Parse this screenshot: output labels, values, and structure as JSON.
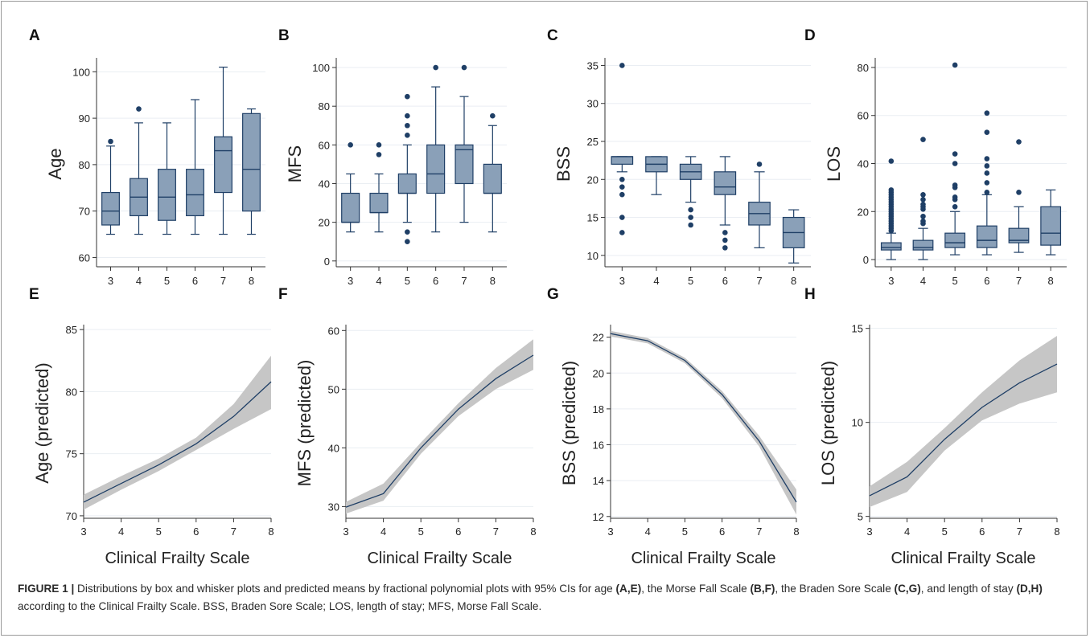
{
  "figure": {
    "caption": {
      "label": "FIGURE 1 |",
      "parts": [
        {
          "t": " Distributions by box and whisker plots and predicted means by fractional polynomial plots with 95% CIs for age ",
          "b": false
        },
        {
          "t": "(A,E)",
          "b": true
        },
        {
          "t": ", the Morse Fall Scale ",
          "b": false
        },
        {
          "t": "(B,F)",
          "b": true
        },
        {
          "t": ", the Braden Sore Scale ",
          "b": false
        },
        {
          "t": "(C,G)",
          "b": true
        },
        {
          "t": ", and length of stay ",
          "b": false
        },
        {
          "t": "(D,H)",
          "b": true
        },
        {
          "t": " according to the Clinical Frailty Scale. BSS, Braden Sore Scale; LOS, length of stay; MFS, Morse Fall Scale.",
          "b": false
        }
      ]
    }
  },
  "colors": {
    "box_fill": "#8aa0b8",
    "box_stroke": "#1f3f66",
    "outlier": "#1f3f66",
    "line": "#1f3f66",
    "ci_band": "#c6c6c6",
    "grid": "#eaeef3",
    "axis": "#333333"
  },
  "chart_data": [
    {
      "panel": "A",
      "type": "box",
      "categories": [
        "3",
        "4",
        "5",
        "6",
        "7",
        "8"
      ],
      "ylabel": "Age",
      "xlabel": "",
      "ylim": [
        58,
        103
      ],
      "yticks": [
        60,
        70,
        80,
        90,
        100
      ],
      "boxes": [
        {
          "x": "3",
          "min": 65,
          "q1": 67,
          "median": 70,
          "q3": 74,
          "max": 84,
          "outliers": [
            85
          ]
        },
        {
          "x": "4",
          "min": 65,
          "q1": 69,
          "median": 73,
          "q3": 77,
          "max": 89,
          "outliers": [
            92
          ]
        },
        {
          "x": "5",
          "min": 65,
          "q1": 68,
          "median": 73,
          "q3": 79,
          "max": 89,
          "outliers": []
        },
        {
          "x": "6",
          "min": 65,
          "q1": 69,
          "median": 73.5,
          "q3": 79,
          "max": 94,
          "outliers": []
        },
        {
          "x": "7",
          "min": 65,
          "q1": 74,
          "median": 83,
          "q3": 86,
          "max": 101,
          "outliers": []
        },
        {
          "x": "8",
          "min": 65,
          "q1": 70,
          "median": 79,
          "q3": 91,
          "max": 92,
          "outliers": []
        }
      ]
    },
    {
      "panel": "B",
      "type": "box",
      "categories": [
        "3",
        "4",
        "5",
        "6",
        "7",
        "8"
      ],
      "ylabel": "MFS",
      "xlabel": "",
      "ylim": [
        -3,
        105
      ],
      "yticks": [
        0,
        20,
        40,
        60,
        80,
        100
      ],
      "boxes": [
        {
          "x": "3",
          "min": 15,
          "q1": 20,
          "median": 20,
          "q3": 35,
          "max": 45,
          "outliers": [
            60
          ]
        },
        {
          "x": "4",
          "min": 15,
          "q1": 25,
          "median": 25,
          "q3": 35,
          "max": 45,
          "outliers": [
            55,
            60
          ]
        },
        {
          "x": "5",
          "min": 20,
          "q1": 35,
          "median": 35,
          "q3": 45,
          "max": 60,
          "outliers": [
            10,
            15,
            65,
            70,
            75,
            85
          ]
        },
        {
          "x": "6",
          "min": 15,
          "q1": 35,
          "median": 45,
          "q3": 60,
          "max": 90,
          "outliers": [
            100
          ]
        },
        {
          "x": "7",
          "min": 20,
          "q1": 40,
          "median": 57.5,
          "q3": 60,
          "max": 85,
          "outliers": [
            100
          ]
        },
        {
          "x": "8",
          "min": 15,
          "q1": 35,
          "median": 35,
          "q3": 50,
          "max": 70,
          "outliers": [
            75
          ]
        }
      ]
    },
    {
      "panel": "C",
      "type": "box",
      "categories": [
        "3",
        "4",
        "5",
        "6",
        "7",
        "8"
      ],
      "ylabel": "BSS",
      "xlabel": "",
      "ylim": [
        8.5,
        36
      ],
      "yticks": [
        10,
        15,
        20,
        25,
        30,
        35
      ],
      "boxes": [
        {
          "x": "3",
          "min": 21,
          "q1": 22,
          "median": 23,
          "q3": 23,
          "max": 23,
          "outliers": [
            13,
            15,
            18,
            19,
            20,
            35
          ]
        },
        {
          "x": "4",
          "min": 18,
          "q1": 21,
          "median": 22,
          "q3": 23,
          "max": 23,
          "outliers": []
        },
        {
          "x": "5",
          "min": 17,
          "q1": 20,
          "median": 21,
          "q3": 22,
          "max": 23,
          "outliers": [
            14,
            15,
            16
          ]
        },
        {
          "x": "6",
          "min": 14,
          "q1": 18,
          "median": 19,
          "q3": 21,
          "max": 23,
          "outliers": [
            11,
            12,
            13
          ]
        },
        {
          "x": "7",
          "min": 11,
          "q1": 14,
          "median": 15.5,
          "q3": 17,
          "max": 21,
          "outliers": [
            22
          ]
        },
        {
          "x": "8",
          "min": 9,
          "q1": 11,
          "median": 13,
          "q3": 15,
          "max": 16,
          "outliers": []
        }
      ]
    },
    {
      "panel": "D",
      "type": "box",
      "categories": [
        "3",
        "4",
        "5",
        "6",
        "7",
        "8"
      ],
      "ylabel": "LOS",
      "xlabel": "",
      "ylim": [
        -3,
        84
      ],
      "yticks": [
        0,
        20,
        40,
        60,
        80
      ],
      "boxes": [
        {
          "x": "3",
          "min": 0,
          "q1": 4,
          "median": 5,
          "q3": 7,
          "max": 11,
          "outliers": [
            12,
            13,
            14,
            15,
            16,
            17,
            18,
            19,
            20,
            21,
            22,
            23,
            24,
            25,
            26,
            27,
            28,
            29,
            41
          ]
        },
        {
          "x": "4",
          "min": 0,
          "q1": 4,
          "median": 5,
          "q3": 8,
          "max": 13,
          "outliers": [
            15,
            16,
            18,
            21,
            22,
            23,
            25,
            27,
            50
          ]
        },
        {
          "x": "5",
          "min": 2,
          "q1": 5,
          "median": 7,
          "q3": 11,
          "max": 20,
          "outliers": [
            22,
            25,
            26,
            30,
            31,
            40,
            44,
            81
          ]
        },
        {
          "x": "6",
          "min": 2,
          "q1": 5,
          "median": 8,
          "q3": 14,
          "max": 27,
          "outliers": [
            28,
            32,
            36,
            39,
            42,
            53,
            61
          ]
        },
        {
          "x": "7",
          "min": 3,
          "q1": 7,
          "median": 8,
          "q3": 13,
          "max": 22,
          "outliers": [
            28,
            49
          ]
        },
        {
          "x": "8",
          "min": 2,
          "q1": 6,
          "median": 11,
          "q3": 22,
          "max": 29,
          "outliers": []
        }
      ]
    },
    {
      "panel": "E",
      "type": "line",
      "x": [
        3,
        4,
        5,
        6,
        7,
        8
      ],
      "xlabel": "Clinical Frailty Scale",
      "ylabel": "Age (predicted)",
      "ylim": [
        69.8,
        85.4
      ],
      "xlim": [
        3,
        8
      ],
      "yticks": [
        70,
        75,
        80,
        85
      ],
      "series": [
        {
          "values": [
            71.1,
            72.6,
            74.1,
            75.8,
            78.0,
            80.8
          ],
          "lower": [
            70.5,
            72.1,
            73.6,
            75.3,
            77.0,
            78.6
          ],
          "upper": [
            71.7,
            73.2,
            74.6,
            76.3,
            79.0,
            82.9
          ]
        }
      ]
    },
    {
      "panel": "F",
      "type": "line",
      "x": [
        3,
        4,
        5,
        6,
        7,
        8
      ],
      "xlabel": "Clinical Frailty Scale",
      "ylabel": "MFS (predicted)",
      "ylim": [
        28,
        61
      ],
      "xlim": [
        3,
        8
      ],
      "yticks": [
        30,
        40,
        50,
        60
      ],
      "series": [
        {
          "values": [
            29.9,
            32.2,
            40.0,
            46.6,
            51.8,
            55.8
          ],
          "lower": [
            28.8,
            31.0,
            39.0,
            45.4,
            50.0,
            53.3
          ],
          "upper": [
            30.8,
            33.9,
            40.9,
            47.6,
            53.6,
            58.5
          ]
        }
      ]
    },
    {
      "panel": "G",
      "type": "line",
      "x": [
        3,
        4,
        5,
        6,
        7,
        8
      ],
      "xlabel": "Clinical Frailty Scale",
      "ylabel": "BSS (predicted)",
      "ylim": [
        11.9,
        22.7
      ],
      "xlim": [
        3,
        8
      ],
      "yticks": [
        12,
        14,
        16,
        18,
        20,
        22
      ],
      "series": [
        {
          "values": [
            22.2,
            21.8,
            20.7,
            18.8,
            16.2,
            12.8
          ],
          "lower": [
            22.05,
            21.65,
            20.55,
            18.6,
            15.9,
            12.1
          ],
          "upper": [
            22.35,
            21.95,
            20.85,
            19.0,
            16.5,
            13.5
          ]
        }
      ]
    },
    {
      "panel": "H",
      "type": "line",
      "x": [
        3,
        4,
        5,
        6,
        7,
        8
      ],
      "xlabel": "Clinical Frailty Scale",
      "ylabel": "LOS (predicted)",
      "ylim": [
        4.9,
        15.2
      ],
      "xlim": [
        3,
        8
      ],
      "yticks": [
        5,
        10,
        15
      ],
      "series": [
        {
          "values": [
            6.1,
            7.1,
            9.1,
            10.8,
            12.1,
            13.1
          ],
          "lower": [
            5.5,
            6.3,
            8.5,
            10.1,
            11.0,
            11.6
          ],
          "upper": [
            6.6,
            7.9,
            9.7,
            11.6,
            13.3,
            14.6
          ]
        }
      ]
    }
  ]
}
